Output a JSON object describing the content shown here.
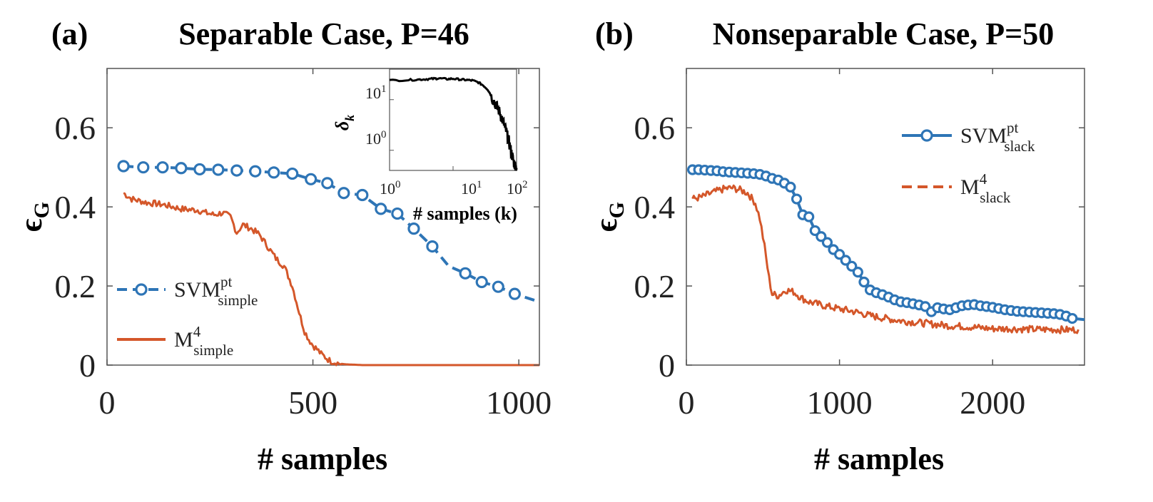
{
  "colors": {
    "svm": "#2E75B6",
    "m4": "#D4572A",
    "inset": "#000000"
  },
  "chart_data": [
    {
      "type": "line",
      "panel_label": "(a)",
      "title": "Separable Case, P=46",
      "xlabel": "# samples",
      "ylabel": "ϵ",
      "ylabel_sub": "G",
      "xlim": [
        0,
        1050
      ],
      "ylim": [
        0,
        0.75
      ],
      "xticks": [
        0,
        500,
        1000
      ],
      "xtick_labels": [
        "0",
        "500",
        "1000"
      ],
      "yticks": [
        0,
        0.2,
        0.4,
        0.6
      ],
      "ytick_labels": [
        "0",
        "0.2",
        "0.4",
        "0.6"
      ],
      "legend_position": "bottom-left",
      "series": [
        {
          "name": "SVM simple pt",
          "legend_main": "SVM",
          "legend_sup": "pt",
          "legend_sub": "simple",
          "style": "dashed-marker",
          "x": [
            40,
            88,
            135,
            180,
            225,
            270,
            315,
            360,
            405,
            450,
            495,
            535,
            575,
            620,
            665,
            705,
            745,
            790,
            830,
            870,
            910,
            950,
            990,
            1050
          ],
          "y": [
            0.503,
            0.5,
            0.5,
            0.498,
            0.495,
            0.494,
            0.492,
            0.49,
            0.487,
            0.484,
            0.47,
            0.46,
            0.435,
            0.43,
            0.395,
            0.383,
            0.345,
            0.3,
            0.25,
            0.232,
            0.21,
            0.198,
            0.18,
            0.16
          ],
          "markers": [
            true,
            true,
            true,
            true,
            true,
            true,
            true,
            true,
            true,
            true,
            true,
            true,
            true,
            true,
            true,
            true,
            true,
            true,
            false,
            true,
            true,
            true,
            true,
            false
          ]
        },
        {
          "name": "M4 simple",
          "legend_main": "M",
          "legend_sup": "4",
          "legend_sub": "simple",
          "style": "solid-noisy",
          "x": [
            40,
            60,
            80,
            100,
            120,
            140,
            160,
            180,
            200,
            220,
            240,
            260,
            280,
            300,
            315,
            330,
            350,
            370,
            390,
            410,
            430,
            450,
            460,
            470,
            480,
            490,
            500,
            510,
            520,
            530,
            540,
            550,
            560,
            570,
            580,
            600,
            620,
            700,
            800,
            900,
            1000,
            1050
          ],
          "y": [
            0.435,
            0.42,
            0.415,
            0.41,
            0.408,
            0.405,
            0.4,
            0.395,
            0.393,
            0.392,
            0.385,
            0.38,
            0.385,
            0.375,
            0.335,
            0.355,
            0.345,
            0.33,
            0.3,
            0.27,
            0.25,
            0.2,
            0.16,
            0.12,
            0.085,
            0.065,
            0.05,
            0.04,
            0.028,
            0.02,
            0.012,
            0.008,
            0.005,
            0.003,
            0.002,
            0.001,
            0,
            0,
            0,
            0,
            0,
            0
          ],
          "noise": 0.008
        }
      ],
      "inset": {
        "type": "line",
        "scale": "log-log",
        "ylabel": "δ",
        "ylabel_sub": "k",
        "xlabel": "# samples (k)",
        "xlim": [
          1,
          100
        ],
        "ylim": [
          0.4,
          40
        ],
        "xtick_labels": [
          {
            "base": "10",
            "exp": "0"
          },
          {
            "base": "10",
            "exp": "1"
          },
          {
            "base": "10",
            "exp": "2"
          }
        ],
        "ytick_labels": [
          {
            "base": "10",
            "exp": "0"
          },
          {
            "base": "10",
            "exp": "1"
          }
        ],
        "x": [
          1,
          2,
          3,
          4,
          5,
          6,
          8,
          10,
          13,
          16,
          20,
          25,
          30,
          35,
          40,
          45,
          50,
          55,
          60,
          65,
          70,
          75,
          80,
          85,
          90,
          95,
          100
        ],
        "y": [
          24,
          24.5,
          25,
          25.5,
          26,
          26.3,
          25.5,
          26,
          25,
          24.5,
          24,
          22,
          19,
          16,
          12,
          9,
          7,
          5.5,
          4,
          3,
          2.2,
          1.6,
          1.1,
          0.8,
          0.6,
          0.5,
          0.45
        ]
      }
    },
    {
      "type": "line",
      "panel_label": "(b)",
      "title": "Nonseparable Case, P=50",
      "xlabel": "# samples",
      "ylabel": "ϵ",
      "ylabel_sub": "G",
      "xlim": [
        0,
        2600
      ],
      "ylim": [
        0,
        0.75
      ],
      "xticks": [
        0,
        1000,
        2000
      ],
      "xtick_labels": [
        "0",
        "1000",
        "2000"
      ],
      "yticks": [
        0,
        0.2,
        0.4,
        0.6
      ],
      "ytick_labels": [
        "0",
        "0.2",
        "0.4",
        "0.6"
      ],
      "legend_position": "top-right",
      "series": [
        {
          "name": "SVM slack pt",
          "legend_main": "SVM",
          "legend_sup": "pt",
          "legend_sub": "slack",
          "style": "solid-marker",
          "x": [
            40,
            80,
            120,
            160,
            200,
            240,
            280,
            320,
            360,
            400,
            440,
            480,
            520,
            560,
            600,
            640,
            680,
            720,
            760,
            800,
            840,
            880,
            920,
            960,
            1000,
            1040,
            1080,
            1120,
            1160,
            1200,
            1240,
            1280,
            1320,
            1360,
            1400,
            1440,
            1480,
            1520,
            1560,
            1600,
            1640,
            1680,
            1720,
            1760,
            1800,
            1840,
            1880,
            1920,
            1960,
            2000,
            2040,
            2080,
            2120,
            2160,
            2200,
            2240,
            2280,
            2320,
            2360,
            2400,
            2440,
            2480,
            2520,
            2600
          ],
          "y": [
            0.494,
            0.494,
            0.493,
            0.492,
            0.491,
            0.489,
            0.488,
            0.487,
            0.486,
            0.485,
            0.484,
            0.482,
            0.478,
            0.472,
            0.468,
            0.46,
            0.45,
            0.42,
            0.38,
            0.375,
            0.34,
            0.325,
            0.31,
            0.292,
            0.28,
            0.265,
            0.25,
            0.235,
            0.21,
            0.19,
            0.183,
            0.178,
            0.172,
            0.165,
            0.16,
            0.158,
            0.155,
            0.152,
            0.148,
            0.135,
            0.145,
            0.142,
            0.14,
            0.145,
            0.15,
            0.152,
            0.153,
            0.15,
            0.148,
            0.146,
            0.143,
            0.14,
            0.138,
            0.136,
            0.135,
            0.134,
            0.133,
            0.132,
            0.131,
            0.13,
            0.128,
            0.124,
            0.118,
            0.115
          ]
        },
        {
          "name": "M4 slack",
          "legend_main": "M",
          "legend_sup": "4",
          "legend_sub": "slack",
          "style": "dashed-noisy",
          "x": [
            40,
            100,
            150,
            200,
            250,
            300,
            350,
            400,
            450,
            480,
            510,
            540,
            560,
            600,
            650,
            700,
            750,
            800,
            900,
            1000,
            1100,
            1200,
            1300,
            1400,
            1500,
            1600,
            1700,
            1800,
            1900,
            2000,
            2100,
            2200,
            2300,
            2400,
            2500,
            2560
          ],
          "y": [
            0.42,
            0.425,
            0.433,
            0.44,
            0.446,
            0.448,
            0.443,
            0.435,
            0.41,
            0.37,
            0.3,
            0.22,
            0.18,
            0.175,
            0.19,
            0.185,
            0.17,
            0.16,
            0.15,
            0.142,
            0.135,
            0.125,
            0.118,
            0.112,
            0.108,
            0.104,
            0.1,
            0.098,
            0.095,
            0.092,
            0.092,
            0.091,
            0.09,
            0.09,
            0.089,
            0.09
          ],
          "noise": 0.009
        }
      ]
    }
  ]
}
